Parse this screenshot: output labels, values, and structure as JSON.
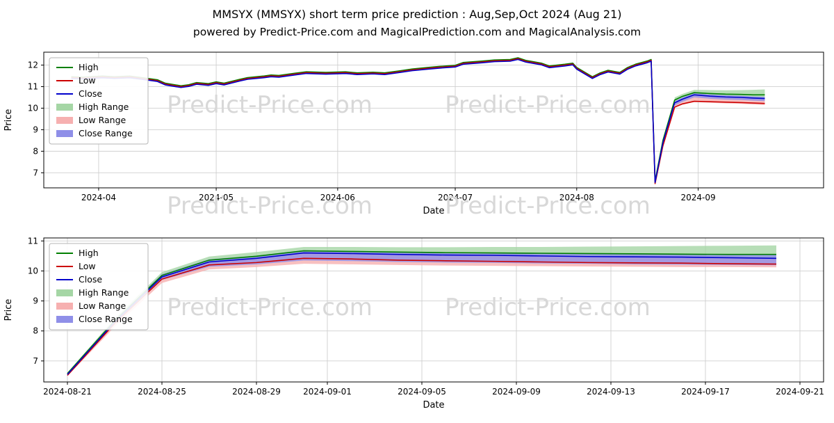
{
  "page": {
    "title": "MMSYX (MMSYX) short term price prediction : Aug,Sep,Oct 2024 (Aug 21)",
    "subtitle": "powered by Predict-Price.com and MagicalPrediction.com and MagicalAnalysis.com",
    "watermark_text": "Predict-Price.com"
  },
  "colors": {
    "high": "#007f00",
    "low": "#cc0000",
    "close": "#0000cc",
    "high_range": "#a5d6a5",
    "low_range": "#f6b0b0",
    "close_range": "#8f8fe8",
    "grid": "#cfcfcf",
    "watermark": "#d8d8d8"
  },
  "legend": {
    "items": [
      {
        "label": "High",
        "type": "line",
        "color": "high"
      },
      {
        "label": "Low",
        "type": "line",
        "color": "low"
      },
      {
        "label": "Close",
        "type": "line",
        "color": "close"
      },
      {
        "label": "High Range",
        "type": "patch",
        "color": "high_range"
      },
      {
        "label": "Low Range",
        "type": "patch",
        "color": "low_range"
      },
      {
        "label": "Close Range",
        "type": "patch",
        "color": "close_range"
      }
    ]
  },
  "chart_data": [
    {
      "type": "line",
      "name": "price-history-with-prediction",
      "xlabel": "Date",
      "ylabel": "Price",
      "xlim": [
        "2024-03-18",
        "2024-10-03"
      ],
      "ylim": [
        6.3,
        12.6
      ],
      "yticks": [
        7,
        8,
        9,
        10,
        11,
        12
      ],
      "xticks": [
        {
          "date": "2024-04-01",
          "label": "2024-04"
        },
        {
          "date": "2024-05-01",
          "label": "2024-05"
        },
        {
          "date": "2024-06-01",
          "label": "2024-06"
        },
        {
          "date": "2024-07-01",
          "label": "2024-07"
        },
        {
          "date": "2024-08-01",
          "label": "2024-08"
        },
        {
          "date": "2024-09-01",
          "label": "2024-09"
        }
      ],
      "x": [
        "2024-03-25",
        "2024-03-28",
        "2024-04-02",
        "2024-04-05",
        "2024-04-09",
        "2024-04-12",
        "2024-04-16",
        "2024-04-18",
        "2024-04-22",
        "2024-04-24",
        "2024-04-26",
        "2024-04-29",
        "2024-05-01",
        "2024-05-03",
        "2024-05-07",
        "2024-05-09",
        "2024-05-13",
        "2024-05-15",
        "2024-05-17",
        "2024-05-21",
        "2024-05-24",
        "2024-05-29",
        "2024-06-03",
        "2024-06-06",
        "2024-06-10",
        "2024-06-13",
        "2024-06-17",
        "2024-06-20",
        "2024-06-24",
        "2024-06-27",
        "2024-07-01",
        "2024-07-03",
        "2024-07-08",
        "2024-07-11",
        "2024-07-15",
        "2024-07-17",
        "2024-07-19",
        "2024-07-23",
        "2024-07-25",
        "2024-07-29",
        "2024-07-31",
        "2024-08-01",
        "2024-08-05",
        "2024-08-07",
        "2024-08-09",
        "2024-08-12",
        "2024-08-14",
        "2024-08-16",
        "2024-08-19",
        "2024-08-20",
        "2024-08-21",
        "2024-08-23",
        "2024-08-26",
        "2024-08-28",
        "2024-08-31",
        "2024-09-04",
        "2024-09-08",
        "2024-09-12",
        "2024-09-15",
        "2024-09-18"
      ],
      "series": [
        {
          "name": "High",
          "color": "high",
          "values": [
            11.46,
            11.44,
            11.49,
            11.46,
            11.49,
            11.42,
            11.32,
            11.16,
            11.04,
            11.09,
            11.19,
            11.14,
            11.22,
            11.16,
            11.34,
            11.42,
            11.49,
            11.54,
            11.52,
            11.62,
            11.69,
            11.66,
            11.69,
            11.64,
            11.67,
            11.64,
            11.74,
            11.82,
            11.89,
            11.94,
            11.99,
            12.12,
            12.19,
            12.24,
            12.26,
            12.34,
            12.22,
            12.09,
            11.96,
            12.04,
            12.09,
            11.89,
            11.46,
            11.64,
            11.76,
            11.66,
            11.89,
            12.04,
            12.19,
            12.26,
            6.62,
            8.5,
            10.38,
            10.55,
            10.72,
            10.68,
            10.65,
            10.64,
            10.62,
            10.62
          ]
        },
        {
          "name": "Low",
          "color": "low",
          "values": [
            11.42,
            11.4,
            11.45,
            11.42,
            11.45,
            11.38,
            11.28,
            11.12,
            11.0,
            11.05,
            11.15,
            11.1,
            11.18,
            11.12,
            11.3,
            11.38,
            11.45,
            11.5,
            11.48,
            11.58,
            11.65,
            11.62,
            11.65,
            11.6,
            11.63,
            11.6,
            11.7,
            11.78,
            11.85,
            11.9,
            11.95,
            12.08,
            12.15,
            12.2,
            12.22,
            12.3,
            12.18,
            12.05,
            11.92,
            12.0,
            12.05,
            11.85,
            11.42,
            11.6,
            11.72,
            11.62,
            11.85,
            12.0,
            12.15,
            12.22,
            6.5,
            8.25,
            10.05,
            10.2,
            10.32,
            10.3,
            10.28,
            10.26,
            10.24,
            10.22
          ]
        },
        {
          "name": "Close",
          "color": "close",
          "values": [
            11.38,
            11.36,
            11.41,
            11.38,
            11.41,
            11.34,
            11.24,
            11.08,
            10.96,
            11.01,
            11.11,
            11.06,
            11.14,
            11.08,
            11.26,
            11.34,
            11.41,
            11.46,
            11.44,
            11.54,
            11.61,
            11.58,
            11.61,
            11.56,
            11.59,
            11.56,
            11.66,
            11.74,
            11.81,
            11.86,
            11.91,
            12.04,
            12.11,
            12.16,
            12.18,
            12.26,
            12.14,
            12.01,
            11.88,
            11.96,
            12.01,
            11.81,
            11.38,
            11.56,
            11.68,
            11.58,
            11.81,
            11.96,
            12.11,
            12.18,
            6.55,
            8.4,
            10.25,
            10.42,
            10.62,
            10.56,
            10.52,
            10.5,
            10.47,
            10.45
          ]
        }
      ],
      "bands": [
        {
          "name": "High Range",
          "color": "high_range",
          "x": [
            "2024-08-26",
            "2024-08-28",
            "2024-08-31",
            "2024-09-04",
            "2024-09-08",
            "2024-09-12",
            "2024-09-15",
            "2024-09-18"
          ],
          "upper": [
            10.5,
            10.66,
            10.85,
            10.84,
            10.83,
            10.84,
            10.85,
            10.87
          ],
          "lower": [
            10.25,
            10.42,
            10.62,
            10.56,
            10.52,
            10.5,
            10.47,
            10.45
          ]
        },
        {
          "name": "Low Range",
          "color": "low_range",
          "x": [
            "2024-08-26",
            "2024-08-28",
            "2024-08-31",
            "2024-09-04",
            "2024-09-08",
            "2024-09-12",
            "2024-09-15",
            "2024-09-18"
          ],
          "upper": [
            10.25,
            10.42,
            10.62,
            10.56,
            10.52,
            10.5,
            10.47,
            10.45
          ],
          "lower": [
            10.02,
            10.16,
            10.28,
            10.25,
            10.22,
            10.2,
            10.17,
            10.15
          ]
        },
        {
          "name": "Close Range",
          "color": "close_range",
          "x": [
            "2024-08-26",
            "2024-08-28",
            "2024-08-31",
            "2024-09-04",
            "2024-09-08",
            "2024-09-12",
            "2024-09-15",
            "2024-09-18"
          ],
          "upper": [
            10.33,
            10.5,
            10.7,
            10.64,
            10.6,
            10.58,
            10.55,
            10.53
          ],
          "lower": [
            10.13,
            10.3,
            10.5,
            10.44,
            10.4,
            10.38,
            10.35,
            10.33
          ]
        }
      ]
    },
    {
      "type": "line",
      "name": "short-term-prediction-detail",
      "xlabel": "Date",
      "ylabel": "Price",
      "xlim": [
        "2024-08-20",
        "2024-09-22"
      ],
      "ylim": [
        6.3,
        11.1
      ],
      "yticks": [
        7,
        8,
        9,
        10,
        11
      ],
      "xticks": [
        {
          "date": "2024-08-21",
          "label": "2024-08-21"
        },
        {
          "date": "2024-08-25",
          "label": "2024-08-25"
        },
        {
          "date": "2024-08-29",
          "label": "2024-08-29"
        },
        {
          "date": "2024-09-01",
          "label": "2024-09-01"
        },
        {
          "date": "2024-09-05",
          "label": "2024-09-05"
        },
        {
          "date": "2024-09-09",
          "label": "2024-09-09"
        },
        {
          "date": "2024-09-13",
          "label": "2024-09-13"
        },
        {
          "date": "2024-09-17",
          "label": "2024-09-17"
        },
        {
          "date": "2024-09-21",
          "label": "2024-09-21"
        }
      ],
      "x": [
        "2024-08-21",
        "2024-08-23",
        "2024-08-25",
        "2024-08-27",
        "2024-08-29",
        "2024-08-31",
        "2024-09-02",
        "2024-09-04",
        "2024-09-06",
        "2024-09-08",
        "2024-09-10",
        "2024-09-12",
        "2024-09-14",
        "2024-09-16",
        "2024-09-18",
        "2024-09-20"
      ],
      "series": [
        {
          "name": "High",
          "color": "high",
          "values": [
            6.58,
            8.34,
            9.85,
            10.36,
            10.49,
            10.67,
            10.65,
            10.63,
            10.61,
            10.6,
            10.59,
            10.58,
            10.57,
            10.56,
            10.55,
            10.55
          ]
        },
        {
          "name": "Low",
          "color": "low",
          "values": [
            6.52,
            8.25,
            9.73,
            10.2,
            10.28,
            10.42,
            10.4,
            10.36,
            10.34,
            10.32,
            10.3,
            10.28,
            10.27,
            10.26,
            10.24,
            10.23
          ]
        },
        {
          "name": "Close",
          "color": "close",
          "values": [
            6.55,
            8.3,
            9.8,
            10.3,
            10.42,
            10.6,
            10.58,
            10.55,
            10.53,
            10.52,
            10.5,
            10.48,
            10.47,
            10.46,
            10.44,
            10.42
          ]
        }
      ],
      "bands": [
        {
          "name": "High Range",
          "color": "high_range",
          "upper": [
            6.61,
            8.42,
            9.96,
            10.48,
            10.63,
            10.8,
            10.8,
            10.79,
            10.79,
            10.8,
            10.8,
            10.81,
            10.82,
            10.83,
            10.84,
            10.85
          ],
          "lower": [
            6.55,
            8.3,
            9.8,
            10.3,
            10.42,
            10.6,
            10.58,
            10.55,
            10.53,
            10.52,
            10.5,
            10.48,
            10.47,
            10.46,
            10.44,
            10.42
          ]
        },
        {
          "name": "Low Range",
          "color": "low_range",
          "upper": [
            6.55,
            8.3,
            9.8,
            10.3,
            10.42,
            10.6,
            10.58,
            10.55,
            10.53,
            10.52,
            10.5,
            10.48,
            10.47,
            10.46,
            10.44,
            10.42
          ],
          "lower": [
            6.49,
            8.14,
            9.6,
            10.05,
            10.13,
            10.24,
            10.22,
            10.2,
            10.18,
            10.17,
            10.16,
            10.15,
            10.14,
            10.13,
            10.13,
            10.12
          ]
        },
        {
          "name": "Close Range",
          "color": "close_range",
          "upper": [
            6.58,
            8.37,
            9.89,
            10.39,
            10.51,
            10.69,
            10.67,
            10.64,
            10.62,
            10.61,
            10.6,
            10.59,
            10.58,
            10.57,
            10.55,
            10.54
          ],
          "lower": [
            6.52,
            8.23,
            9.7,
            10.14,
            10.22,
            10.35,
            10.33,
            10.3,
            10.28,
            10.27,
            10.25,
            10.24,
            10.22,
            10.21,
            10.2,
            10.19
          ]
        }
      ]
    }
  ]
}
